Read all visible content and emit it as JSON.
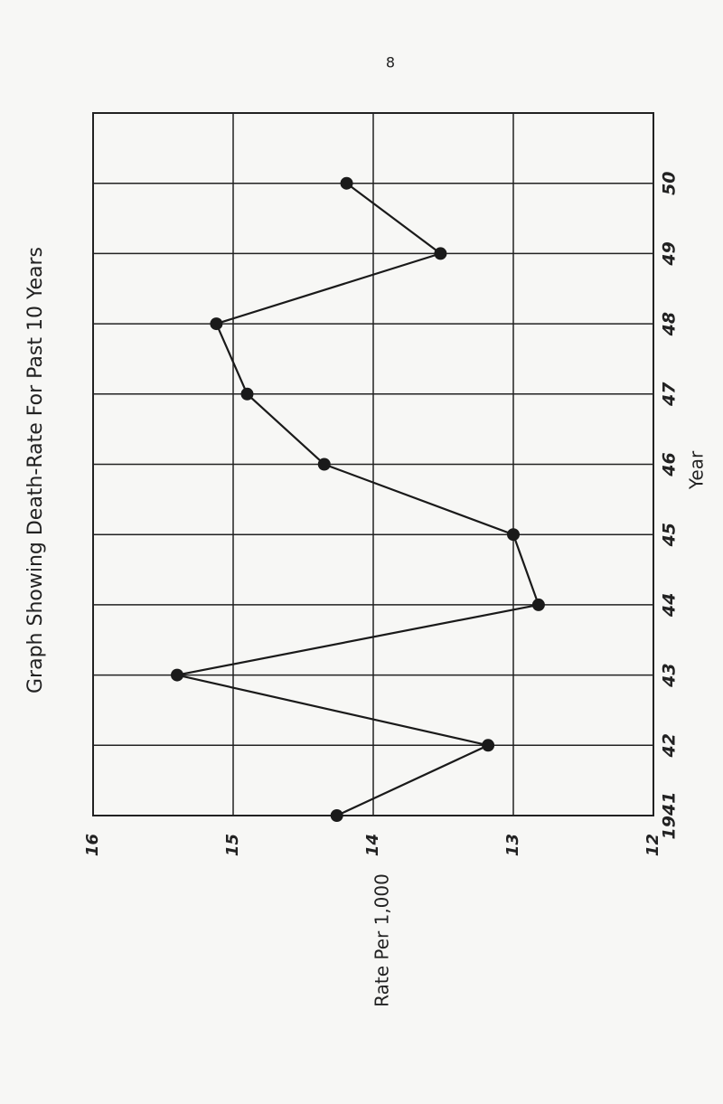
{
  "page_number": "8",
  "chart_data": {
    "type": "line",
    "title": "Graph Showing Death-Rate For Past 10 Years",
    "x_label": "Year",
    "y_label": "Rate Per 1,000",
    "x": [
      1941,
      1942,
      1943,
      1944,
      1945,
      1946,
      1947,
      1948,
      1949,
      1950
    ],
    "series": [
      {
        "name": "Death-Rate",
        "color": "#1a1a1a",
        "values": [
          14.26,
          13.18,
          15.4,
          12.82,
          13.0,
          14.35,
          14.9,
          15.12,
          13.52,
          14.19
        ]
      }
    ],
    "xlim": [
      1941,
      1951
    ],
    "xticks": [
      {
        "value": 1941,
        "label": "1941"
      },
      {
        "value": 1942,
        "label": "42"
      },
      {
        "value": 1943,
        "label": "43"
      },
      {
        "value": 1944,
        "label": "44"
      },
      {
        "value": 1945,
        "label": "45"
      },
      {
        "value": 1946,
        "label": "46"
      },
      {
        "value": 1947,
        "label": "47"
      },
      {
        "value": 1948,
        "label": "48"
      },
      {
        "value": 1949,
        "label": "49"
      },
      {
        "value": 1950,
        "label": "50"
      }
    ],
    "ylim": [
      16,
      12
    ],
    "yticks": [
      16,
      15,
      14,
      13,
      12
    ],
    "grid": true
  }
}
